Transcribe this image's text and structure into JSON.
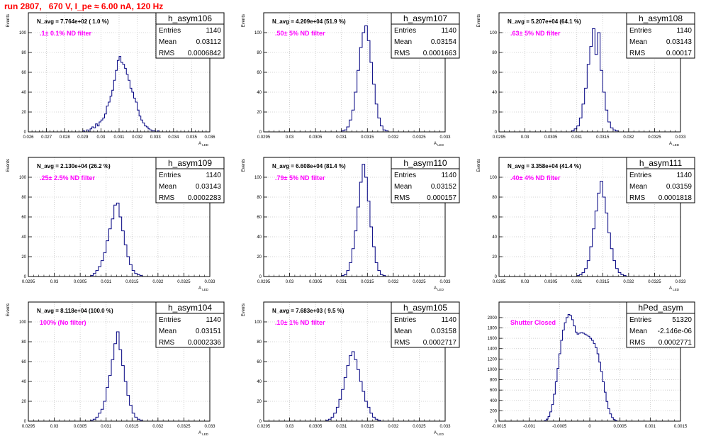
{
  "header": {
    "title": "run 2807,   670 V, I_pe ≈ 6.00 nA, 120 Hz"
  },
  "colors": {
    "histogram": "#000080",
    "grid": "#c8c8c8",
    "annotation_title": "#000000",
    "annotation_filter": "#ff00ff",
    "header": "#ff0000"
  },
  "chart_data": [
    {
      "type": "bar",
      "histogram": "h_asym106",
      "ylabel": "Events",
      "xlabel": "A_LED",
      "xlim": [
        0.026,
        0.036
      ],
      "ylim": [
        0,
        120
      ],
      "xticks": [
        0.026,
        0.027,
        0.028,
        0.029,
        0.03,
        0.031,
        0.032,
        0.033,
        0.034,
        0.035,
        0.036
      ],
      "xticklabels": [
        "0.026",
        "0.027",
        "0.028",
        "0.029",
        "0.03",
        "0.031",
        "0.032",
        "0.033",
        "0.034",
        "0.035",
        "0.036"
      ],
      "yticks": [
        0,
        20,
        40,
        60,
        80,
        100
      ],
      "stats": {
        "entries_label": "Entries",
        "entries": "1140",
        "mean_label": "Mean",
        "mean": "0.03112",
        "rms_label": "RMS",
        "rms": "0.0006842"
      },
      "annotation": "N_avg = 7.764e+02 ( 1.0 %)",
      "filter_label": ".1± 0.1% ND filter",
      "grid": true,
      "bins": {
        "start": 0.029,
        "width": 0.0001,
        "values": [
          1,
          0,
          2,
          0,
          3,
          5,
          4,
          8,
          6,
          10,
          12,
          14,
          18,
          26,
          30,
          36,
          42,
          52,
          62,
          72,
          76,
          70,
          68,
          64,
          58,
          52,
          44,
          40,
          34,
          30,
          22,
          16,
          12,
          9,
          6,
          5,
          3,
          2,
          1,
          1,
          0,
          1
        ]
      }
    },
    {
      "type": "bar",
      "histogram": "h_asym107",
      "ylabel": "Events",
      "xlabel": "A_LED",
      "xlim": [
        0.0295,
        0.033
      ],
      "ylim": [
        0,
        120
      ],
      "xticks": [
        0.0295,
        0.03,
        0.0305,
        0.031,
        0.0315,
        0.032,
        0.0325,
        0.033
      ],
      "xticklabels": [
        "0.0295",
        "0.03",
        "0.0305",
        "0.031",
        "0.0315",
        "0.032",
        "0.0325",
        "0.033"
      ],
      "yticks": [
        0,
        20,
        40,
        60,
        80,
        100
      ],
      "stats": {
        "entries_label": "Entries",
        "entries": "1140",
        "mean_label": "Mean",
        "mean": "0.03154",
        "rms_label": "RMS",
        "rms": "0.0001663"
      },
      "annotation": "N_avg = 4.209e+04 (51.9 %)",
      "filter_label": ".50± 5% ND filter",
      "grid": true,
      "bins": {
        "start": 0.031,
        "width": 5e-05,
        "values": [
          1,
          2,
          5,
          12,
          22,
          40,
          62,
          85,
          100,
          107,
          92,
          70,
          48,
          28,
          14,
          6,
          2,
          1
        ]
      }
    },
    {
      "type": "bar",
      "histogram": "h_asym108",
      "ylabel": "Events",
      "xlabel": "A_LED",
      "xlim": [
        0.0295,
        0.033
      ],
      "ylim": [
        0,
        120
      ],
      "xticks": [
        0.0295,
        0.03,
        0.0305,
        0.031,
        0.0315,
        0.032,
        0.0325,
        0.033
      ],
      "xticklabels": [
        "0.0295",
        "0.03",
        "0.0305",
        "0.031",
        "0.0315",
        "0.032",
        "0.0325",
        "0.033"
      ],
      "yticks": [
        0,
        20,
        40,
        60,
        80,
        100
      ],
      "stats": {
        "entries_label": "Entries",
        "entries": "1140",
        "mean_label": "Mean",
        "mean": "0.03143",
        "rms_label": "RMS",
        "rms": "0.00017"
      },
      "annotation": "N_avg = 5.207e+04 (64.1 %)",
      "filter_label": ".63± 5% ND filter",
      "grid": true,
      "bins": {
        "start": 0.0309,
        "width": 5e-05,
        "values": [
          1,
          3,
          6,
          14,
          28,
          44,
          68,
          86,
          104,
          78,
          100,
          62,
          40,
          22,
          10,
          4,
          2,
          1
        ]
      }
    },
    {
      "type": "bar",
      "histogram": "h_asym109",
      "ylabel": "Events",
      "xlabel": "A_LED",
      "xlim": [
        0.0295,
        0.033
      ],
      "ylim": [
        0,
        120
      ],
      "xticks": [
        0.0295,
        0.03,
        0.0305,
        0.031,
        0.0315,
        0.032,
        0.0325,
        0.033
      ],
      "xticklabels": [
        "0.0295",
        "0.03",
        "0.0305",
        "0.031",
        "0.0315",
        "0.032",
        "0.0325",
        "0.033"
      ],
      "yticks": [
        0,
        20,
        40,
        60,
        80,
        100
      ],
      "stats": {
        "entries_label": "Entries",
        "entries": "1140",
        "mean_label": "Mean",
        "mean": "0.03143",
        "rms_label": "RMS",
        "rms": "0.0002283"
      },
      "annotation": "N_avg = 2.130e+04 (26.2 %)",
      "filter_label": ".25± 2.5% ND filter",
      "grid": true,
      "bins": {
        "start": 0.0307,
        "width": 5e-05,
        "values": [
          1,
          3,
          6,
          10,
          16,
          24,
          36,
          48,
          58,
          72,
          74,
          60,
          46,
          32,
          20,
          12,
          6,
          3,
          2,
          1
        ]
      }
    },
    {
      "type": "bar",
      "histogram": "h_asym110",
      "ylabel": "Events",
      "xlabel": "A_LED",
      "xlim": [
        0.0295,
        0.033
      ],
      "ylim": [
        0,
        120
      ],
      "xticks": [
        0.0295,
        0.03,
        0.0305,
        0.031,
        0.0315,
        0.032,
        0.0325,
        0.033
      ],
      "xticklabels": [
        "0.0295",
        "0.03",
        "0.0305",
        "0.031",
        "0.0315",
        "0.032",
        "0.0325",
        "0.033"
      ],
      "yticks": [
        0,
        20,
        40,
        60,
        80,
        100
      ],
      "stats": {
        "entries_label": "Entries",
        "entries": "1140",
        "mean_label": "Mean",
        "mean": "0.03152",
        "rms_label": "RMS",
        "rms": "0.000157"
      },
      "annotation": "N_avg = 6.608e+04 (81.4 %)",
      "filter_label": ".79± 5% ND filter",
      "grid": true,
      "bins": {
        "start": 0.031,
        "width": 5e-05,
        "values": [
          1,
          2,
          6,
          14,
          28,
          46,
          70,
          95,
          113,
          100,
          76,
          50,
          30,
          14,
          6,
          2,
          1
        ]
      }
    },
    {
      "type": "bar",
      "histogram": "h_asym111",
      "ylabel": "Events",
      "xlabel": "A_LED",
      "xlim": [
        0.0295,
        0.033
      ],
      "ylim": [
        0,
        120
      ],
      "xticks": [
        0.0295,
        0.03,
        0.0305,
        0.031,
        0.0315,
        0.032,
        0.0325,
        0.033
      ],
      "xticklabels": [
        "0.0295",
        "0.03",
        "0.0305",
        "0.031",
        "0.0315",
        "0.032",
        "0.0325",
        "0.033"
      ],
      "yticks": [
        0,
        20,
        40,
        60,
        80,
        100
      ],
      "stats": {
        "entries_label": "Entries",
        "entries": "1140",
        "mean_label": "Mean",
        "mean": "0.03159",
        "rms_label": "RMS",
        "rms": "0.0001818"
      },
      "annotation": "N_avg = 3.358e+04 (41.4 %)",
      "filter_label": ".40± 4% ND filter",
      "grid": true,
      "bins": {
        "start": 0.031,
        "width": 5e-05,
        "values": [
          1,
          2,
          4,
          8,
          16,
          30,
          48,
          66,
          84,
          96,
          80,
          64,
          44,
          28,
          16,
          8,
          4,
          2,
          1
        ]
      }
    },
    {
      "type": "bar",
      "histogram": "h_asym104",
      "ylabel": "Events",
      "xlabel": "A_LED",
      "xlim": [
        0.0295,
        0.033
      ],
      "ylim": [
        0,
        120
      ],
      "xticks": [
        0.0295,
        0.03,
        0.0305,
        0.031,
        0.0315,
        0.032,
        0.0325,
        0.033
      ],
      "xticklabels": [
        "0.0295",
        "0.03",
        "0.0305",
        "0.031",
        "0.0315",
        "0.032",
        "0.0325",
        "0.033"
      ],
      "yticks": [
        0,
        20,
        40,
        60,
        80,
        100
      ],
      "stats": {
        "entries_label": "Entries",
        "entries": "1140",
        "mean_label": "Mean",
        "mean": "0.03151",
        "rms_label": "RMS",
        "rms": "0.0002336"
      },
      "annotation": "N_avg = 8.118e+04 (100.0 %)",
      "filter_label": "100% (No filter)",
      "grid": true,
      "bins": {
        "start": 0.0307,
        "width": 5e-05,
        "values": [
          1,
          2,
          4,
          8,
          12,
          20,
          34,
          46,
          62,
          78,
          90,
          72,
          56,
          40,
          26,
          16,
          8,
          4,
          2,
          1
        ]
      }
    },
    {
      "type": "bar",
      "histogram": "h_asym105",
      "ylabel": "Events",
      "xlabel": "A_LED",
      "xlim": [
        0.0295,
        0.033
      ],
      "ylim": [
        0,
        120
      ],
      "xticks": [
        0.0295,
        0.03,
        0.0305,
        0.031,
        0.0315,
        0.032,
        0.0325,
        0.033
      ],
      "xticklabels": [
        "0.0295",
        "0.03",
        "0.0305",
        "0.031",
        "0.0315",
        "0.032",
        "0.0325",
        "0.033"
      ],
      "yticks": [
        0,
        20,
        40,
        60,
        80,
        100
      ],
      "stats": {
        "entries_label": "Entries",
        "entries": "1140",
        "mean_label": "Mean",
        "mean": "0.03158",
        "rms_label": "RMS",
        "rms": "0.0002717"
      },
      "annotation": "N_avg = 7.683e+03 ( 9.5 %)",
      "filter_label": ".10± 1% ND filter",
      "grid": true,
      "bins": {
        "start": 0.0307,
        "width": 5e-05,
        "values": [
          1,
          2,
          4,
          8,
          14,
          22,
          32,
          44,
          56,
          66,
          70,
          62,
          52,
          40,
          30,
          20,
          14,
          8,
          4,
          2,
          1
        ]
      }
    },
    {
      "type": "bar",
      "histogram": "hPed_asym",
      "ylabel": "",
      "xlabel": "",
      "xlim": [
        -0.0015,
        0.0015
      ],
      "ylim": [
        0,
        2300
      ],
      "xticks": [
        -0.0015,
        -0.001,
        -0.0005,
        0,
        0.0005,
        0.001,
        0.0015
      ],
      "xticklabels": [
        "-0.0015",
        "-0.001",
        "-0.0005",
        "0",
        "0.0005",
        "0.001",
        "0.0015"
      ],
      "yticks": [
        0,
        200,
        400,
        600,
        800,
        1000,
        1200,
        1400,
        1600,
        1800,
        2000
      ],
      "stats": {
        "entries_label": "Entries",
        "entries": "51320",
        "mean_label": "Mean",
        "mean": "-2.146e-06",
        "rms_label": "RMS",
        "rms": "0.0002771"
      },
      "annotation": "",
      "filter_label": "Shutter Closed",
      "grid": true,
      "bins": {
        "start": -0.00075,
        "width": 3e-05,
        "values": [
          10,
          40,
          90,
          180,
          320,
          520,
          760,
          1020,
          1300,
          1560,
          1760,
          1900,
          2000,
          2060,
          2040,
          1960,
          1840,
          1720,
          1680,
          1700,
          1710,
          1700,
          1680,
          1660,
          1640,
          1600,
          1560,
          1500,
          1420,
          1300,
          1140,
          960,
          760,
          560,
          380,
          240,
          140,
          70,
          30,
          12
        ]
      }
    }
  ]
}
